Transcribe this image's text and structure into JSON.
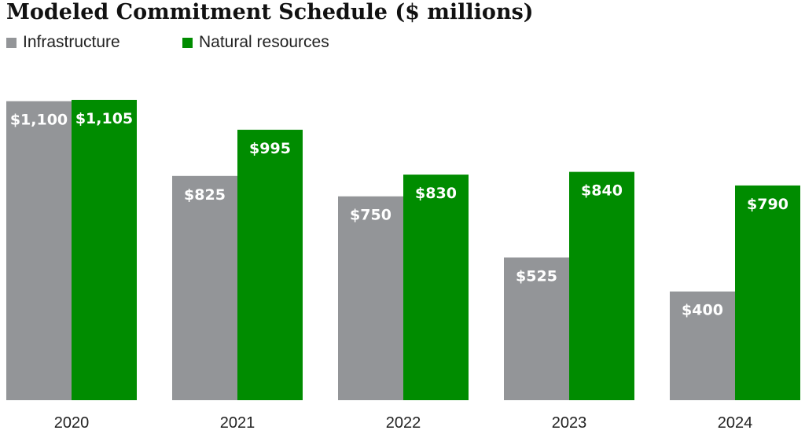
{
  "chart_data": {
    "type": "bar",
    "title": "Modeled Commitment Schedule ($ millions)",
    "categories": [
      "2020",
      "2021",
      "2022",
      "2023",
      "2024"
    ],
    "series": [
      {
        "name": "Infrastructure",
        "color": "#939598",
        "values": [
          1100,
          825,
          750,
          525,
          400
        ],
        "labels": [
          "$1,100",
          "$825",
          "$750",
          "$525",
          "$400"
        ]
      },
      {
        "name": "Natural resources",
        "color": "#008c00",
        "values": [
          1105,
          995,
          830,
          840,
          790
        ],
        "labels": [
          "$1,105",
          "$995",
          "$830",
          "$840",
          "$790"
        ]
      }
    ],
    "xlabel": "",
    "ylabel": "",
    "ylim": [
      0,
      1105
    ],
    "grid": false,
    "legend_position": "top-left"
  }
}
